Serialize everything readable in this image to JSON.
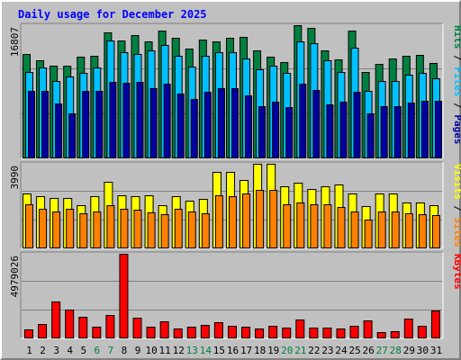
{
  "chart_data": [
    {
      "type": "bar",
      "title": "Daily usage for December 2025",
      "categories": [
        "1",
        "2",
        "3",
        "4",
        "5",
        "6",
        "7",
        "8",
        "9",
        "10",
        "11",
        "12",
        "13",
        "14",
        "15",
        "16",
        "17",
        "18",
        "19",
        "20",
        "21",
        "22",
        "23",
        "24",
        "25",
        "26",
        "27",
        "28",
        "29",
        "30",
        "31"
      ],
      "weekend_days": [
        6,
        7,
        13,
        14,
        20,
        21,
        27,
        28
      ],
      "max_label": "16807",
      "ylim": [
        0,
        16807
      ],
      "legend": [
        "Pages",
        "Files",
        "Hits"
      ],
      "series": [
        {
          "name": "Hits",
          "color": "#008040",
          "values": [
            13120,
            12390,
            11670,
            11670,
            12790,
            12960,
            15950,
            14880,
            15600,
            14770,
            16160,
            15170,
            13880,
            14950,
            14770,
            15270,
            15320,
            13640,
            12860,
            12180,
            16850,
            16450,
            13630,
            12540,
            16070,
            10860,
            11920,
            12600,
            12940,
            13050,
            12090
          ]
        },
        {
          "name": "Files",
          "color": "#00c0ff",
          "values": [
            10910,
            11460,
            9760,
            10360,
            10760,
            11460,
            14880,
            13440,
            13220,
            13660,
            14360,
            12960,
            11540,
            12920,
            13360,
            13360,
            12640,
            11260,
            11680,
            10800,
            14760,
            14480,
            12380,
            10880,
            13960,
            8560,
            9760,
            9820,
            10560,
            10740,
            10160
          ]
        },
        {
          "name": "Pages",
          "color": "#0000a0",
          "values": [
            8560,
            8560,
            6880,
            5720,
            8480,
            8520,
            9640,
            9520,
            9660,
            8880,
            9420,
            8220,
            7480,
            8420,
            8900,
            8860,
            7940,
            6620,
            7120,
            6440,
            9460,
            8680,
            6840,
            7180,
            8460,
            5720,
            6580,
            6560,
            7080,
            7260,
            7320
          ]
        }
      ]
    },
    {
      "type": "bar",
      "max_label": "3990",
      "ylim": [
        0,
        3990
      ],
      "legend": [
        "Sites",
        "Visits"
      ],
      "series": [
        {
          "name": "Visits",
          "color": "#ffff00",
          "values": [
            2570,
            2480,
            2380,
            2380,
            2040,
            2450,
            3140,
            2520,
            2450,
            2520,
            2050,
            2450,
            2250,
            2320,
            3610,
            3610,
            3230,
            3990,
            3990,
            2910,
            3110,
            2800,
            2910,
            3010,
            2590,
            1980,
            2590,
            2570,
            2180,
            2180,
            2020
          ]
        },
        {
          "name": "Sites",
          "color": "#ff8000",
          "values": [
            2090,
            1850,
            1730,
            1880,
            1670,
            1740,
            2040,
            1850,
            1840,
            1680,
            1620,
            1850,
            1720,
            1640,
            2500,
            2470,
            2580,
            2780,
            2780,
            2080,
            2180,
            2070,
            2090,
            1970,
            1750,
            1370,
            1720,
            1720,
            1670,
            1600,
            1580
          ]
        }
      ]
    },
    {
      "type": "bar",
      "max_label": "4979026",
      "ylim": [
        0,
        4979026
      ],
      "legend": [
        "KBytes"
      ],
      "series": [
        {
          "name": "KBytes",
          "color": "#ff0000",
          "values": [
            530000,
            860000,
            2190000,
            1680000,
            1260000,
            680000,
            1360000,
            4979026,
            1210000,
            710000,
            1000000,
            580000,
            710000,
            780000,
            960000,
            730000,
            710000,
            600000,
            760000,
            620000,
            1120000,
            630000,
            650000,
            590000,
            720000,
            1080000,
            360000,
            420000,
            1170000,
            730000,
            1650000
          ]
        }
      ]
    }
  ]
}
